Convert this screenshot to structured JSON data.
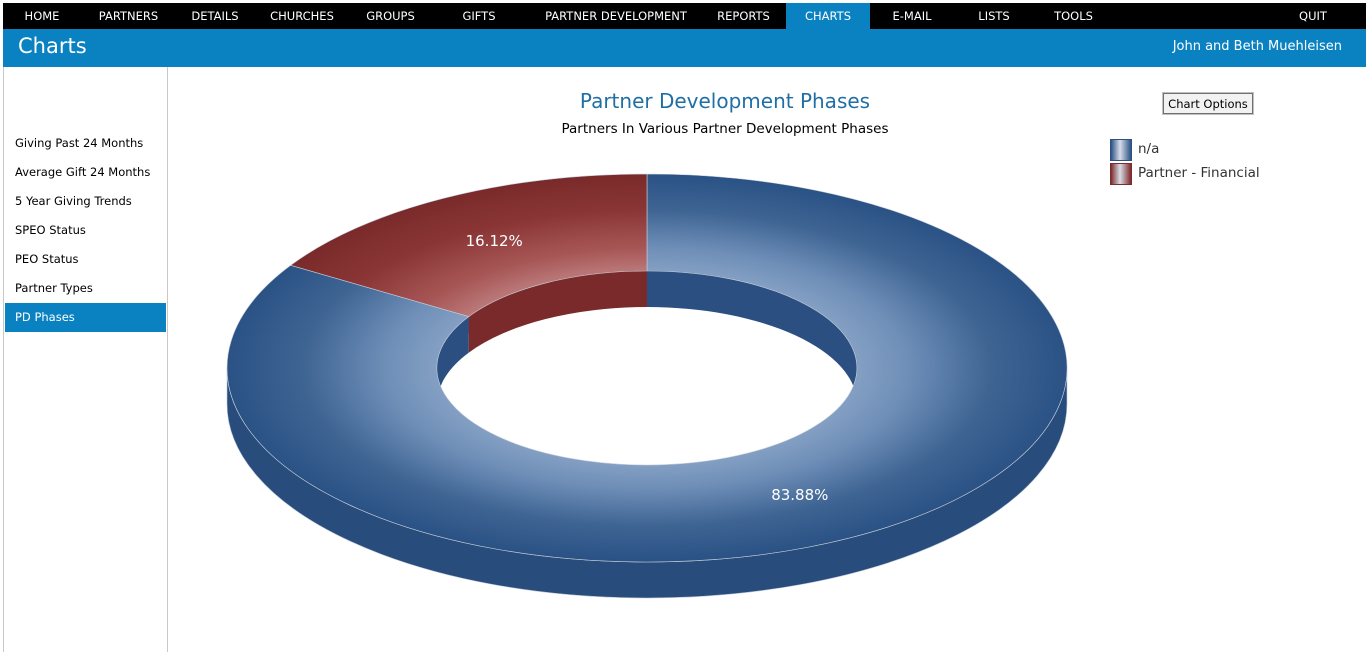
{
  "nav": {
    "items": [
      {
        "label": "HOME"
      },
      {
        "label": "PARTNERS"
      },
      {
        "label": "DETAILS"
      },
      {
        "label": "CHURCHES"
      },
      {
        "label": "GROUPS"
      },
      {
        "label": "GIFTS"
      },
      {
        "label": "PARTNER DEVELOPMENT"
      },
      {
        "label": "REPORTS"
      },
      {
        "label": "CHARTS"
      },
      {
        "label": "E-MAIL"
      },
      {
        "label": "LISTS"
      },
      {
        "label": "TOOLS"
      },
      {
        "label": "QUIT"
      }
    ],
    "active": "CHARTS"
  },
  "header": {
    "title": "Charts",
    "user": "John and Beth Muehleisen"
  },
  "sidebar": {
    "items": [
      {
        "label": "Giving Past 24 Months"
      },
      {
        "label": "Average Gift 24 Months"
      },
      {
        "label": "5 Year Giving Trends"
      },
      {
        "label": "SPEO Status"
      },
      {
        "label": "PEO Status"
      },
      {
        "label": "Partner Types"
      },
      {
        "label": "PD Phases"
      }
    ],
    "active": "PD Phases"
  },
  "toolbar": {
    "chart_options_label": "Chart Options"
  },
  "colors": {
    "nav_background": "#000000",
    "accent": "#0a82c2",
    "series_na": "#2b5285",
    "series_partner_financial": "#7d2a2a"
  },
  "chart_data": {
    "type": "pie",
    "variant": "3d-doughnut",
    "title": "Partner Development Phases",
    "subtitle": "Partners In Various Partner Development Phases",
    "legend_position": "top-right",
    "slices": [
      {
        "label": "n/a",
        "value": 83.88,
        "display": "83.88%",
        "color": "#2b5285"
      },
      {
        "label": "Partner - Financial",
        "value": 16.12,
        "display": "16.12%",
        "color": "#7d2a2a"
      }
    ]
  }
}
